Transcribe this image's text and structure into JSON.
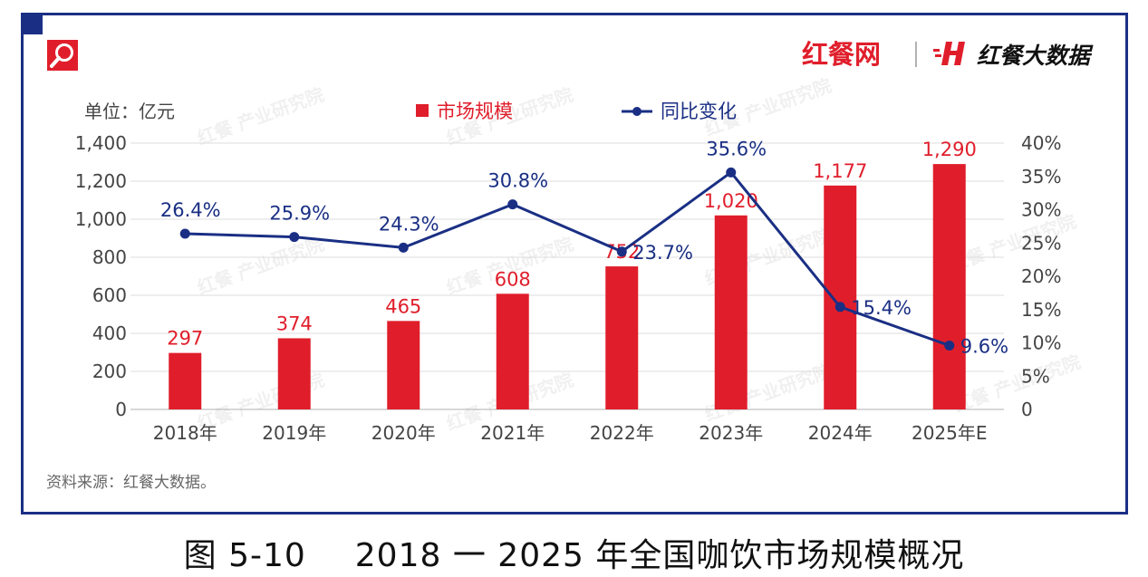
{
  "brand": {
    "logo_left": "红餐网",
    "logo_right": "红餐大数据",
    "watermark": "红餐 产业研究院",
    "accent": "#e01e2b",
    "navy": "#1a2f84"
  },
  "caption": {
    "number": "图 5-10",
    "title": "2018 一 2025 年全国咖饮市场规模概况"
  },
  "source": "资料来源：红餐大数据。",
  "chart_data": {
    "type": "bar",
    "unit_label": "单位：亿元",
    "categories": [
      "2018年",
      "2019年",
      "2020年",
      "2021年",
      "2022年",
      "2023年",
      "2024年",
      "2025年E"
    ],
    "series": [
      {
        "name": "市场规模",
        "type": "bar",
        "axis": "left",
        "color": "#e01e2b",
        "values": [
          297,
          374,
          465,
          608,
          752,
          1020,
          1177,
          1290
        ],
        "labels": [
          "297",
          "374",
          "465",
          "608",
          "752",
          "1,020",
          "1,177",
          "1,290"
        ]
      },
      {
        "name": "同比变化",
        "type": "line",
        "axis": "right",
        "color": "#1a2f84",
        "values": [
          26.4,
          25.9,
          24.3,
          30.8,
          23.7,
          35.6,
          15.4,
          9.6
        ],
        "labels": [
          "26.4%",
          "25.9%",
          "24.3%",
          "30.8%",
          "23.7%",
          "35.6%",
          "15.4%",
          "9.6%"
        ]
      }
    ],
    "y_left": {
      "min": 0,
      "max": 1400,
      "ticks": [
        "0",
        "200",
        "400",
        "600",
        "800",
        "1,000",
        "1,200",
        "1,400"
      ]
    },
    "y_right": {
      "min": 0,
      "max": 40,
      "ticks": [
        "0",
        "5%",
        "10%",
        "15%",
        "20%",
        "25%",
        "30%",
        "35%",
        "40%"
      ]
    },
    "grid": true,
    "legend": "top-center"
  }
}
